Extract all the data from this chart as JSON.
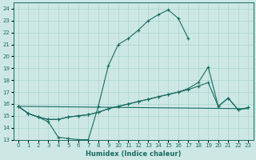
{
  "xlabel": "Humidex (Indice chaleur)",
  "background_color": "#cde8e4",
  "grid_color": "#a8d4cf",
  "line_color": "#1a6b62",
  "xlim": [
    -0.5,
    23.5
  ],
  "ylim": [
    13,
    24.5
  ],
  "yticks": [
    13,
    14,
    15,
    16,
    17,
    18,
    19,
    20,
    21,
    22,
    23,
    24
  ],
  "xticks": [
    0,
    1,
    2,
    3,
    4,
    5,
    6,
    7,
    8,
    9,
    10,
    11,
    12,
    13,
    14,
    15,
    16,
    17,
    18,
    19,
    20,
    21,
    22,
    23
  ],
  "line1_x": [
    0,
    1,
    2,
    3,
    4,
    5,
    6,
    7,
    8,
    9,
    10,
    11,
    12,
    13,
    14,
    15,
    16,
    17
  ],
  "line1_y": [
    15.8,
    15.2,
    14.9,
    14.5,
    13.2,
    13.1,
    13.0,
    13.0,
    15.8,
    19.2,
    21.0,
    21.5,
    22.2,
    23.0,
    23.5,
    23.9,
    23.2,
    21.5
  ],
  "line2_x": [
    0,
    1,
    2,
    3,
    4,
    5,
    6,
    7,
    8,
    9,
    10,
    11,
    12,
    13,
    14,
    15,
    16,
    17,
    18,
    19,
    20,
    21,
    22,
    23
  ],
  "line2_y": [
    15.8,
    15.2,
    14.9,
    14.7,
    14.7,
    14.9,
    15.0,
    15.1,
    15.3,
    15.6,
    15.8,
    16.0,
    16.2,
    16.4,
    16.6,
    16.8,
    17.0,
    17.2,
    17.5,
    17.8,
    15.8,
    16.5,
    15.5,
    15.7
  ],
  "line3_x": [
    0,
    1,
    2,
    3,
    4,
    5,
    6,
    7,
    8,
    9,
    10,
    11,
    12,
    13,
    14,
    15,
    16,
    17,
    18,
    19,
    20,
    21,
    22,
    23
  ],
  "line3_y": [
    15.8,
    15.2,
    14.9,
    14.7,
    14.7,
    14.9,
    15.0,
    15.1,
    15.3,
    15.6,
    15.8,
    16.0,
    16.2,
    16.4,
    16.6,
    16.8,
    17.0,
    17.3,
    17.8,
    19.1,
    15.8,
    16.5,
    15.5,
    15.7
  ],
  "line4_x": [
    0,
    23
  ],
  "line4_y": [
    15.8,
    15.6
  ]
}
